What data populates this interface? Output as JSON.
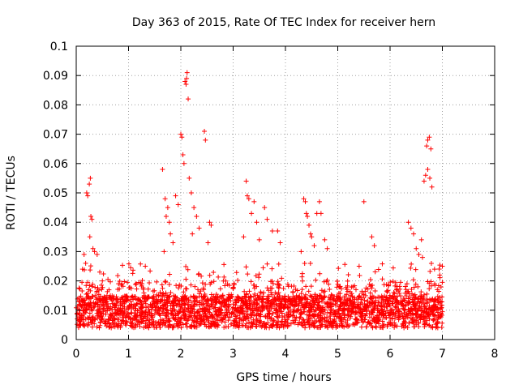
{
  "chart_data": {
    "type": "scatter",
    "title": "Day 363 of 2015, Rate Of TEC Index for receiver hern",
    "xlabel": "GPS time / hours",
    "ylabel": "ROTI / TECUs",
    "xlim": [
      0,
      8
    ],
    "ylim": [
      0,
      0.1
    ],
    "x_ticks": [
      "0",
      "1",
      "2",
      "3",
      "4",
      "5",
      "6",
      "7",
      "8"
    ],
    "y_ticks": [
      "0",
      "0.01",
      "0.02",
      "0.03",
      "0.04",
      "0.05",
      "0.06",
      "0.07",
      "0.08",
      "0.09",
      "0.1"
    ],
    "grid": true,
    "marker": "+",
    "color": "#ff0000",
    "series": [
      {
        "name": "ROTI",
        "points": [
          [
            0.2,
            0.05
          ],
          [
            0.22,
            0.049
          ],
          [
            0.25,
            0.053
          ],
          [
            0.27,
            0.055
          ],
          [
            0.28,
            0.042
          ],
          [
            0.3,
            0.041
          ],
          [
            0.26,
            0.035
          ],
          [
            0.32,
            0.031
          ],
          [
            0.35,
            0.03
          ],
          [
            0.4,
            0.029
          ],
          [
            0.12,
            0.024
          ],
          [
            0.15,
            0.029
          ],
          [
            0.18,
            0.026
          ],
          [
            0.45,
            0.023
          ],
          [
            0.5,
            0.02
          ],
          [
            1.65,
            0.058
          ],
          [
            1.7,
            0.048
          ],
          [
            1.75,
            0.045
          ],
          [
            1.72,
            0.042
          ],
          [
            1.78,
            0.04
          ],
          [
            1.8,
            0.036
          ],
          [
            1.68,
            0.03
          ],
          [
            1.85,
            0.033
          ],
          [
            1.9,
            0.049
          ],
          [
            1.95,
            0.046
          ],
          [
            2.0,
            0.07
          ],
          [
            2.02,
            0.069
          ],
          [
            2.04,
            0.063
          ],
          [
            2.06,
            0.06
          ],
          [
            2.08,
            0.088
          ],
          [
            2.1,
            0.087
          ],
          [
            2.12,
            0.091
          ],
          [
            2.14,
            0.082
          ],
          [
            2.11,
            0.089
          ],
          [
            2.16,
            0.055
          ],
          [
            2.2,
            0.05
          ],
          [
            2.25,
            0.045
          ],
          [
            2.3,
            0.042
          ],
          [
            2.35,
            0.038
          ],
          [
            2.22,
            0.036
          ],
          [
            2.45,
            0.071
          ],
          [
            2.47,
            0.068
          ],
          [
            2.55,
            0.04
          ],
          [
            2.58,
            0.039
          ],
          [
            2.52,
            0.033
          ],
          [
            3.25,
            0.054
          ],
          [
            3.27,
            0.049
          ],
          [
            3.3,
            0.048
          ],
          [
            3.35,
            0.043
          ],
          [
            3.4,
            0.047
          ],
          [
            3.45,
            0.04
          ],
          [
            3.2,
            0.035
          ],
          [
            3.5,
            0.034
          ],
          [
            3.6,
            0.045
          ],
          [
            3.65,
            0.041
          ],
          [
            3.75,
            0.037
          ],
          [
            3.85,
            0.037
          ],
          [
            3.9,
            0.033
          ],
          [
            4.35,
            0.048
          ],
          [
            4.38,
            0.047
          ],
          [
            4.4,
            0.043
          ],
          [
            4.42,
            0.042
          ],
          [
            4.45,
            0.039
          ],
          [
            4.48,
            0.036
          ],
          [
            4.5,
            0.035
          ],
          [
            4.55,
            0.032
          ],
          [
            4.6,
            0.043
          ],
          [
            4.65,
            0.047
          ],
          [
            4.68,
            0.043
          ],
          [
            4.75,
            0.034
          ],
          [
            4.8,
            0.031
          ],
          [
            4.3,
            0.03
          ],
          [
            5.5,
            0.047
          ],
          [
            5.65,
            0.035
          ],
          [
            5.7,
            0.032
          ],
          [
            6.35,
            0.04
          ],
          [
            6.4,
            0.038
          ],
          [
            6.45,
            0.036
          ],
          [
            6.5,
            0.031
          ],
          [
            6.55,
            0.029
          ],
          [
            6.65,
            0.054
          ],
          [
            6.68,
            0.056
          ],
          [
            6.7,
            0.066
          ],
          [
            6.72,
            0.068
          ],
          [
            6.75,
            0.069
          ],
          [
            6.78,
            0.065
          ],
          [
            6.72,
            0.058
          ],
          [
            6.76,
            0.055
          ],
          [
            6.8,
            0.052
          ],
          [
            6.6,
            0.034
          ],
          [
            6.62,
            0.028
          ],
          [
            6.85,
            0.024
          ],
          [
            6.95,
            0.022
          ],
          [
            7.0,
            0.025
          ]
        ]
      }
    ]
  }
}
